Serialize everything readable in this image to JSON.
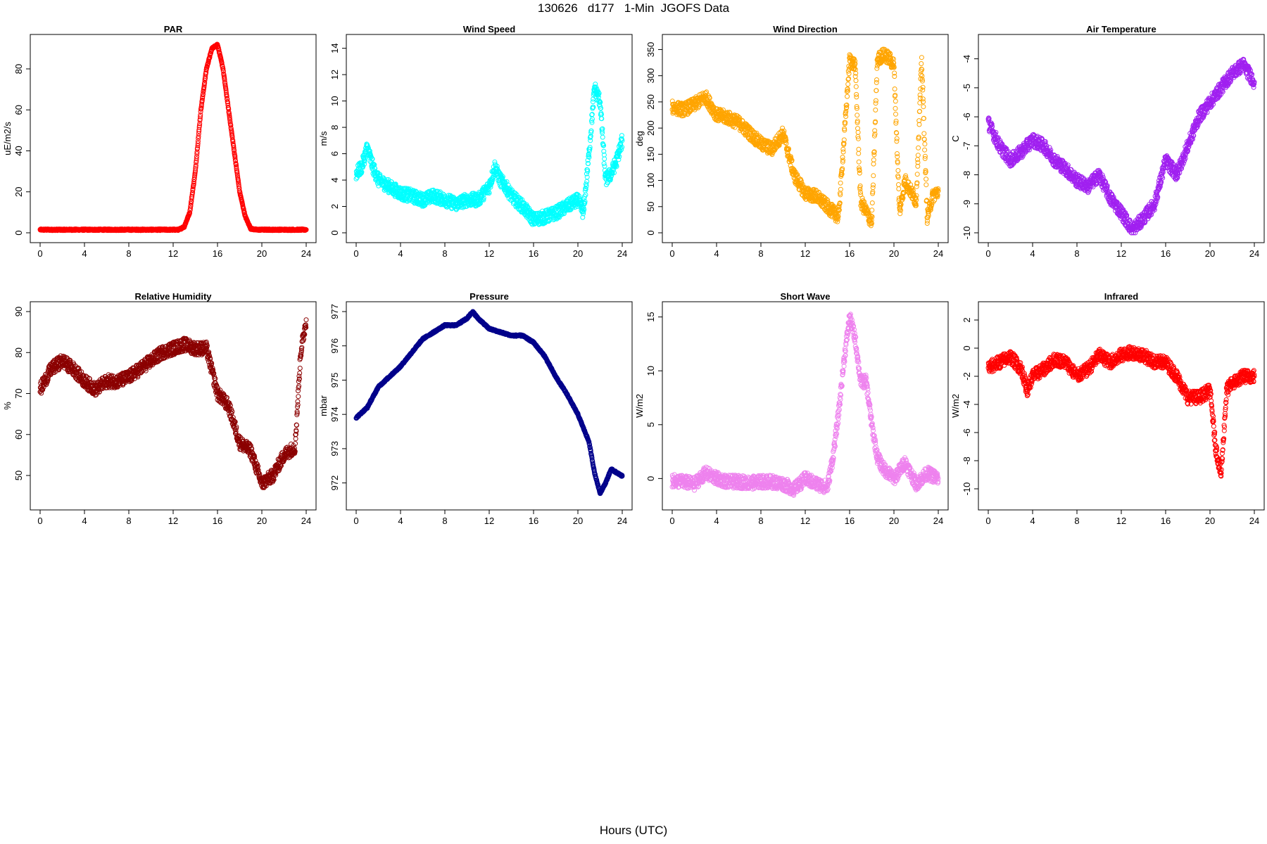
{
  "title": "130626   d177   1-Min  JGOFS Data",
  "xlabel": "Hours (UTC)",
  "chart_data": [
    {
      "type": "scatter",
      "title": "PAR",
      "ylabel": "uE/m2/s",
      "color": "#ff0000",
      "xlim": [
        0,
        24
      ],
      "ylim": [
        0,
        92
      ],
      "xticks": [
        0,
        4,
        8,
        12,
        16,
        20,
        24
      ],
      "yticks": [
        0,
        20,
        40,
        60,
        80
      ],
      "x": [
        0,
        1,
        2,
        3,
        4,
        5,
        6,
        7,
        8,
        9,
        10,
        11,
        12,
        12.5,
        13,
        13.5,
        14,
        14.5,
        15,
        15.5,
        16,
        16.5,
        17,
        17.5,
        18,
        18.5,
        19,
        19.5,
        20,
        21,
        22,
        23,
        24
      ],
      "y": [
        1.5,
        1.5,
        1.5,
        1.5,
        1.5,
        1.5,
        1.5,
        1.5,
        1.5,
        1.5,
        1.5,
        1.5,
        1.5,
        1.5,
        3,
        10,
        30,
        60,
        80,
        90,
        92,
        80,
        60,
        40,
        20,
        8,
        2,
        1.5,
        1.5,
        1.5,
        1.5,
        1.5,
        1.5
      ]
    },
    {
      "type": "scatter",
      "title": "Wind Speed",
      "ylabel": "m/s",
      "color": "#00ffff",
      "xlim": [
        0,
        24
      ],
      "ylim": [
        0,
        14.3
      ],
      "xticks": [
        0,
        4,
        8,
        12,
        16,
        20,
        24
      ],
      "yticks": [
        0,
        2,
        4,
        6,
        8,
        10,
        12,
        14
      ],
      "x": [
        0,
        0.5,
        1,
        1.5,
        2,
        3,
        4,
        5,
        6,
        7,
        8,
        9,
        10,
        11,
        12,
        12.5,
        13,
        13.5,
        14,
        15,
        16,
        17,
        18,
        19,
        20,
        20.5,
        21,
        21.5,
        22,
        22.5,
        23,
        23.5,
        24
      ],
      "y": [
        4.5,
        5,
        6.5,
        5,
        4,
        3.5,
        3,
        2.8,
        2.5,
        2.8,
        2.5,
        2.2,
        2.5,
        2.5,
        3.5,
        5,
        4,
        3.5,
        2.8,
        2,
        1,
        1.2,
        1.5,
        2,
        2.5,
        1.5,
        6,
        11,
        10,
        4,
        4.5,
        5.5,
        7
      ]
    },
    {
      "type": "scatter",
      "title": "Wind Direction",
      "ylabel": "deg",
      "color": "#ffa500",
      "xlim": [
        0,
        24
      ],
      "ylim": [
        0,
        360
      ],
      "xticks": [
        0,
        4,
        8,
        12,
        16,
        20,
        24
      ],
      "yticks": [
        0,
        50,
        100,
        150,
        200,
        250,
        300,
        350
      ],
      "x": [
        0,
        1,
        2,
        3,
        4,
        5,
        6,
        7,
        8,
        9,
        10,
        11,
        12,
        13,
        14,
        15,
        16,
        16.5,
        17,
        17.5,
        18,
        18.5,
        19,
        19.5,
        20,
        20.5,
        21,
        21.5,
        22,
        22.5,
        23,
        23.5,
        24
      ],
      "y": [
        240,
        235,
        245,
        260,
        225,
        220,
        210,
        190,
        170,
        160,
        190,
        110,
        75,
        70,
        50,
        30,
        330,
        320,
        60,
        40,
        20,
        330,
        340,
        335,
        320,
        40,
        100,
        80,
        60,
        330,
        30,
        70,
        80
      ]
    },
    {
      "type": "scatter",
      "title": "Air Temperature",
      "ylabel": "C",
      "color": "#a020f0",
      "xlim": [
        0,
        24
      ],
      "ylim": [
        -10,
        -3.5
      ],
      "xticks": [
        0,
        4,
        8,
        12,
        16,
        20,
        24
      ],
      "yticks": [
        -10,
        -9,
        -8,
        -7,
        -6,
        -5,
        -4
      ],
      "x": [
        0,
        1,
        2,
        3,
        4,
        5,
        6,
        7,
        8,
        9,
        10,
        11,
        12,
        13,
        14,
        15,
        16,
        17,
        18,
        19,
        20,
        21,
        22,
        23,
        24
      ],
      "y": [
        -6.2,
        -7,
        -7.5,
        -7.2,
        -6.8,
        -7,
        -7.5,
        -7.8,
        -8.2,
        -8.4,
        -8,
        -8.8,
        -9.3,
        -9.9,
        -9.5,
        -9,
        -7.5,
        -8,
        -7,
        -6,
        -5.5,
        -5,
        -4.5,
        -4.2,
        -4.8
      ]
    },
    {
      "type": "scatter",
      "title": "Relative Humidity",
      "ylabel": "%",
      "color": "#8b0000",
      "xlim": [
        0,
        24
      ],
      "ylim": [
        44,
        90
      ],
      "xticks": [
        0,
        4,
        8,
        12,
        16,
        20,
        24
      ],
      "yticks": [
        50,
        60,
        70,
        80,
        90
      ],
      "x": [
        0,
        1,
        2,
        3,
        4,
        5,
        6,
        7,
        8,
        9,
        10,
        11,
        12,
        13,
        14,
        15,
        16,
        17,
        18,
        19,
        20,
        21,
        22,
        23,
        23.5,
        24
      ],
      "y": [
        71,
        76,
        78,
        76,
        73,
        71,
        73,
        73,
        74,
        76,
        78,
        80,
        81,
        82,
        81,
        81,
        70,
        67,
        58,
        56,
        48,
        50,
        55,
        57,
        80,
        88
      ]
    },
    {
      "type": "scatter",
      "title": "Pressure",
      "ylabel": "mbar",
      "color": "#00008b",
      "xlim": [
        0,
        24
      ],
      "ylim": [
        971.5,
        977
      ],
      "xticks": [
        0,
        4,
        8,
        12,
        16,
        20,
        24
      ],
      "yticks": [
        972,
        973,
        974,
        975,
        976,
        977
      ],
      "x": [
        0,
        1,
        2,
        3,
        4,
        5,
        6,
        7,
        8,
        9,
        10,
        10.5,
        11,
        12,
        13,
        14,
        15,
        16,
        17,
        18,
        19,
        20,
        21,
        21.5,
        22,
        22.5,
        23,
        24
      ],
      "y": [
        973.9,
        974.2,
        974.8,
        975.1,
        975.4,
        975.8,
        976.2,
        976.4,
        976.6,
        976.6,
        976.8,
        977,
        976.8,
        976.5,
        976.4,
        976.3,
        976.3,
        976.1,
        975.7,
        975.1,
        974.6,
        974,
        973.2,
        972.3,
        971.7,
        972,
        972.4,
        972.2
      ]
    },
    {
      "type": "scatter",
      "title": "Short Wave",
      "ylabel": "W/m2",
      "color": "#ee82ee",
      "xlim": [
        0,
        24
      ],
      "ylim": [
        -2,
        15.5
      ],
      "xticks": [
        0,
        4,
        8,
        12,
        16,
        20,
        24
      ],
      "yticks": [
        0,
        5,
        10,
        15
      ],
      "x": [
        0,
        1,
        2,
        3,
        4,
        5,
        6,
        7,
        8,
        9,
        10,
        11,
        12,
        13,
        14,
        14.5,
        15,
        15.5,
        16,
        16.5,
        17,
        17.5,
        18,
        18.5,
        19,
        20,
        21,
        22,
        23,
        24
      ],
      "y": [
        -0.2,
        -0.3,
        -0.5,
        0.5,
        0,
        -0.3,
        -0.3,
        -0.4,
        -0.3,
        -0.3,
        -0.5,
        -1,
        0,
        -0.5,
        -0.8,
        2,
        6,
        11,
        15,
        13,
        9,
        9,
        5,
        2,
        1,
        0,
        1.5,
        -0.5,
        0.5,
        0
      ]
    },
    {
      "type": "scatter",
      "title": "Infrared",
      "ylabel": "W/m2",
      "color": "#ff0000",
      "xlim": [
        0,
        24
      ],
      "ylim": [
        -10.8,
        2.6
      ],
      "xticks": [
        0,
        4,
        8,
        12,
        16,
        20,
        24
      ],
      "yticks": [
        -10,
        -8,
        -6,
        -4,
        -2,
        0,
        2
      ],
      "x": [
        0,
        1,
        2,
        3,
        3.5,
        4,
        5,
        6,
        7,
        8,
        9,
        10,
        11,
        12,
        13,
        14,
        15,
        16,
        17,
        18,
        19,
        20,
        20.5,
        21,
        21.5,
        22,
        23,
        24
      ],
      "y": [
        -1.4,
        -1,
        -0.6,
        -1.5,
        -3,
        -2,
        -1.5,
        -0.8,
        -1,
        -2,
        -1.5,
        -0.5,
        -1,
        -0.5,
        -0.3,
        -0.5,
        -1,
        -1,
        -2,
        -3.5,
        -3.5,
        -3,
        -7,
        -9,
        -3,
        -2.5,
        -2,
        -2
      ]
    }
  ]
}
